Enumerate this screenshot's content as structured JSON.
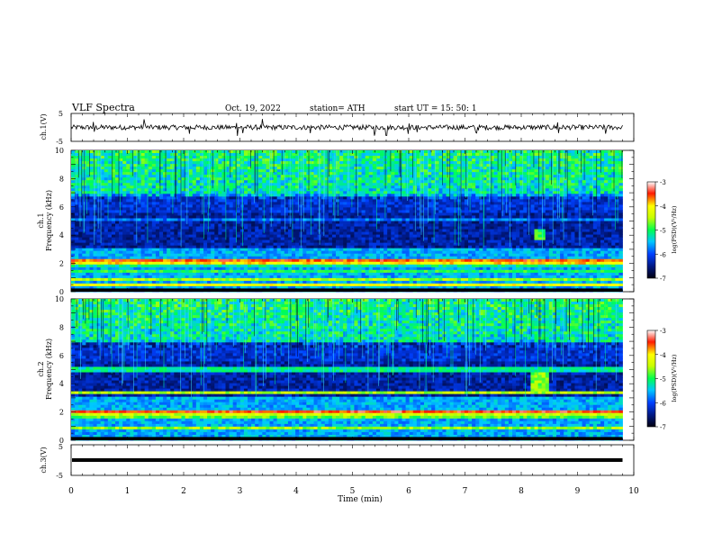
{
  "header": {
    "title": "VLF  Spectra",
    "date": "Oct. 19, 2022",
    "station": "station= ATH",
    "start": "start  UT  =    15: 50: 1"
  },
  "chart_data": [
    {
      "type": "line",
      "panel": "ch1",
      "ylabel": "ch.1(V)",
      "ylim": [
        -5,
        5
      ],
      "yticks": [
        "5",
        "-5"
      ],
      "xlim": [
        0,
        10
      ],
      "baseline": 0.0,
      "amplitude": 0.4,
      "spikes": [
        0.4,
        1.3,
        2.1,
        2.95,
        3.05,
        3.4,
        4.25,
        5.4,
        5.6,
        6.0,
        6.15,
        7.2,
        8.65,
        9.5
      ],
      "color": "#000000"
    },
    {
      "type": "heatmap",
      "panel": "ch1",
      "ylabel": [
        "ch.1",
        "Frequency  (kHz)"
      ],
      "ylim": [
        0,
        10
      ],
      "yticks": [
        "0",
        "2",
        "4",
        "6",
        "8",
        "10"
      ],
      "xlim": [
        0,
        9.8
      ],
      "bands": [
        {
          "f": 0.3,
          "level": -7
        },
        {
          "f": 0.5,
          "level": -4.2
        },
        {
          "f": 0.9,
          "level": -4.6
        },
        {
          "f": 1.5,
          "level": -5.0
        },
        {
          "f": 1.8,
          "level": -5.2
        },
        {
          "f": 2.05,
          "level": -4.0
        },
        {
          "f": 2.2,
          "level": -3.6
        },
        {
          "f": 4.1,
          "level": -7
        },
        {
          "f": 4.4,
          "level": -6.6
        },
        {
          "f": 5.1,
          "level": -5.8
        },
        {
          "f": 6.8,
          "level": -5.6
        }
      ],
      "events": [
        {
          "t0": 8.2,
          "t1": 8.45,
          "f0": 3.6,
          "f1": 4.4,
          "level": -4.9
        }
      ],
      "colorbar": {
        "label": "log(PSD)(V²/Hz)",
        "range": [
          -7,
          -3
        ],
        "ticks": [
          "-3",
          "-4",
          "-5",
          "-6",
          "-7"
        ]
      }
    },
    {
      "type": "heatmap",
      "panel": "ch2",
      "ylabel": [
        "ch.2",
        "Frequency  (kHz)"
      ],
      "ylim": [
        0,
        10
      ],
      "yticks": [
        "0",
        "2",
        "4",
        "6",
        "8",
        "10"
      ],
      "xlim": [
        0,
        9.8
      ],
      "bands": [
        {
          "f": 0.3,
          "level": -7
        },
        {
          "f": 0.8,
          "level": -4.6
        },
        {
          "f": 1.6,
          "level": -4.8
        },
        {
          "f": 1.9,
          "level": -4.4
        },
        {
          "f": 2.0,
          "level": -3.5
        },
        {
          "f": 3.4,
          "level": -4.5
        },
        {
          "f": 4.4,
          "level": -6.4
        },
        {
          "f": 5.0,
          "level": -5.2
        }
      ],
      "events": [
        {
          "t0": 8.15,
          "t1": 8.5,
          "f0": 3.4,
          "f1": 4.8,
          "level": -4.7
        }
      ],
      "colorbar": {
        "label": "log(PSD)(V²/Hz)",
        "range": [
          -7,
          -3
        ],
        "ticks": [
          "-3",
          "-4",
          "-5",
          "-6",
          "-7"
        ]
      }
    },
    {
      "type": "line",
      "panel": "ch3",
      "ylabel": "ch.3(V)",
      "ylim": [
        -5,
        5
      ],
      "yticks": [
        "5",
        "-5"
      ],
      "xlim": [
        0,
        10
      ],
      "baseline": 0.0,
      "amplitude": 0.0,
      "color": "#000000"
    }
  ],
  "xaxis": {
    "label": "Time  (min)",
    "ticks": [
      "0",
      "1",
      "2",
      "3",
      "4",
      "5",
      "6",
      "7",
      "8",
      "9",
      "10"
    ]
  },
  "colormap": {
    "stops": [
      {
        "v": -7,
        "c": "#000010"
      },
      {
        "v": -6.5,
        "c": "#001a8a"
      },
      {
        "v": -6,
        "c": "#0040ff"
      },
      {
        "v": -5.5,
        "c": "#00c8ff"
      },
      {
        "v": -5,
        "c": "#00ff50"
      },
      {
        "v": -4.5,
        "c": "#c8ff00"
      },
      {
        "v": -4,
        "c": "#ffff00"
      },
      {
        "v": -3.5,
        "c": "#ff1a00"
      },
      {
        "v": -3,
        "c": "#ffffff"
      }
    ]
  }
}
